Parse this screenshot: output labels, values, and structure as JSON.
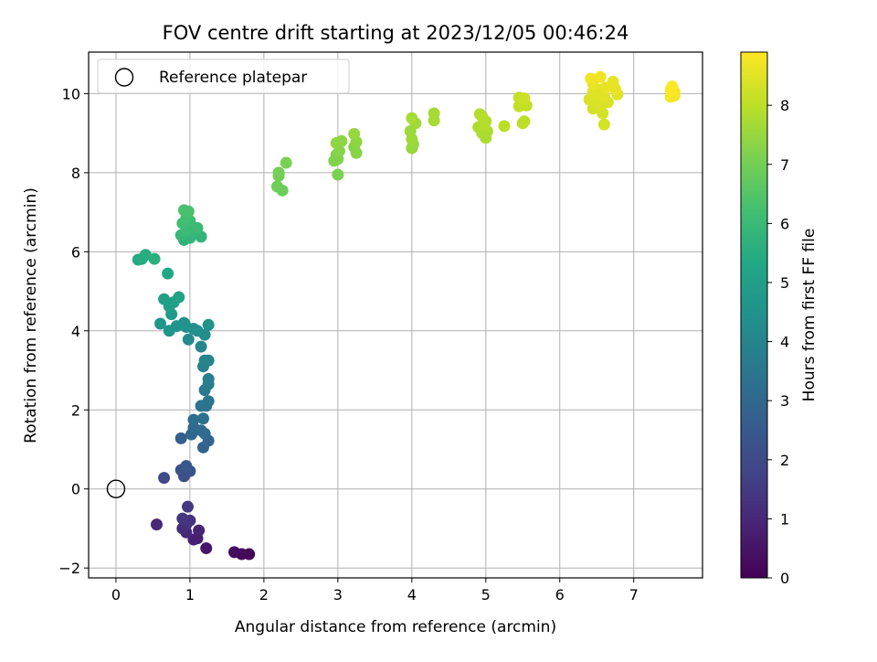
{
  "chart_data": {
    "type": "scatter",
    "title": "FOV centre drift starting at 2023/12/05 00:46:24",
    "xlabel": "Angular distance from reference (arcmin)",
    "ylabel": "Rotation from reference (arcmin)",
    "xlim": [
      -0.37,
      7.93
    ],
    "ylim": [
      -2.25,
      11.05
    ],
    "xticks": [
      0,
      1,
      2,
      3,
      4,
      5,
      6,
      7
    ],
    "yticks": [
      -2,
      0,
      2,
      4,
      6,
      8,
      10
    ],
    "grid": true,
    "legend": {
      "placement": "top-left",
      "entries": [
        "Reference platepar"
      ]
    },
    "reference_point": {
      "x": 0,
      "y": 0,
      "label": "Reference platepar"
    },
    "colorbar": {
      "label": "Hours from first FF file",
      "colormap": "viridis",
      "range": [
        0,
        8.9
      ],
      "ticks": [
        0,
        1,
        2,
        3,
        4,
        5,
        6,
        7,
        8
      ]
    },
    "series": [
      {
        "points": [
          {
            "x": 1.8,
            "y": -1.65,
            "c": 0.1
          },
          {
            "x": 1.7,
            "y": -1.65,
            "c": 0.2
          },
          {
            "x": 1.6,
            "y": -1.6,
            "c": 0.3
          },
          {
            "x": 1.22,
            "y": -1.5,
            "c": 0.5
          },
          {
            "x": 1.1,
            "y": -1.25,
            "c": 0.7
          },
          {
            "x": 1.05,
            "y": -1.28,
            "c": 0.8
          },
          {
            "x": 1.12,
            "y": -1.05,
            "c": 0.9
          },
          {
            "x": 0.95,
            "y": -1.1,
            "c": 1.0
          },
          {
            "x": 0.9,
            "y": -1.0,
            "c": 1.1
          },
          {
            "x": 0.95,
            "y": -0.9,
            "c": 1.2
          },
          {
            "x": 0.55,
            "y": -0.9,
            "c": 1.0
          },
          {
            "x": 1.0,
            "y": -0.8,
            "c": 1.3
          },
          {
            "x": 0.9,
            "y": -0.75,
            "c": 1.4
          },
          {
            "x": 0.97,
            "y": -0.45,
            "c": 1.5
          },
          {
            "x": 0.65,
            "y": 0.28,
            "c": 2.0
          },
          {
            "x": 0.92,
            "y": 0.32,
            "c": 2.1
          },
          {
            "x": 0.88,
            "y": 0.48,
            "c": 2.2
          },
          {
            "x": 1.0,
            "y": 0.45,
            "c": 2.3
          },
          {
            "x": 0.95,
            "y": 0.58,
            "c": 2.4
          },
          {
            "x": 0.88,
            "y": 1.28,
            "c": 2.7
          },
          {
            "x": 1.18,
            "y": 1.05,
            "c": 2.8
          },
          {
            "x": 1.25,
            "y": 1.22,
            "c": 2.9
          },
          {
            "x": 1.02,
            "y": 1.38,
            "c": 3.0
          },
          {
            "x": 1.05,
            "y": 1.55,
            "c": 3.0
          },
          {
            "x": 1.15,
            "y": 1.48,
            "c": 3.1
          },
          {
            "x": 1.2,
            "y": 1.4,
            "c": 3.1
          },
          {
            "x": 1.05,
            "y": 1.75,
            "c": 3.2
          },
          {
            "x": 1.18,
            "y": 1.78,
            "c": 3.3
          },
          {
            "x": 1.15,
            "y": 2.1,
            "c": 3.4
          },
          {
            "x": 1.22,
            "y": 2.1,
            "c": 3.5
          },
          {
            "x": 1.25,
            "y": 2.22,
            "c": 3.5
          },
          {
            "x": 1.2,
            "y": 2.5,
            "c": 3.6
          },
          {
            "x": 1.25,
            "y": 2.65,
            "c": 3.7
          },
          {
            "x": 1.25,
            "y": 2.78,
            "c": 3.8
          },
          {
            "x": 1.18,
            "y": 3.1,
            "c": 3.9
          },
          {
            "x": 1.2,
            "y": 3.25,
            "c": 4.0
          },
          {
            "x": 1.25,
            "y": 3.25,
            "c": 4.0
          },
          {
            "x": 1.15,
            "y": 3.6,
            "c": 4.1
          },
          {
            "x": 0.98,
            "y": 3.78,
            "c": 4.2
          },
          {
            "x": 1.2,
            "y": 3.9,
            "c": 4.3
          },
          {
            "x": 1.05,
            "y": 4.05,
            "c": 4.3
          },
          {
            "x": 1.1,
            "y": 4.0,
            "c": 4.4
          },
          {
            "x": 0.95,
            "y": 4.1,
            "c": 4.4
          },
          {
            "x": 0.92,
            "y": 4.2,
            "c": 4.5
          },
          {
            "x": 1.25,
            "y": 4.15,
            "c": 4.5
          },
          {
            "x": 0.82,
            "y": 4.12,
            "c": 4.6
          },
          {
            "x": 0.72,
            "y": 4.0,
            "c": 4.6
          },
          {
            "x": 0.6,
            "y": 4.18,
            "c": 4.7
          },
          {
            "x": 0.75,
            "y": 4.42,
            "c": 4.8
          },
          {
            "x": 0.72,
            "y": 4.62,
            "c": 4.9
          },
          {
            "x": 0.65,
            "y": 4.8,
            "c": 5.0
          },
          {
            "x": 0.78,
            "y": 4.72,
            "c": 5.0
          },
          {
            "x": 0.85,
            "y": 4.85,
            "c": 5.1
          },
          {
            "x": 0.7,
            "y": 5.45,
            "c": 5.3
          },
          {
            "x": 0.3,
            "y": 5.8,
            "c": 5.4
          },
          {
            "x": 0.35,
            "y": 5.82,
            "c": 5.5
          },
          {
            "x": 0.4,
            "y": 5.92,
            "c": 5.5
          },
          {
            "x": 0.52,
            "y": 5.82,
            "c": 5.6
          },
          {
            "x": 0.92,
            "y": 6.3,
            "c": 5.7
          },
          {
            "x": 1.0,
            "y": 6.35,
            "c": 5.8
          },
          {
            "x": 1.15,
            "y": 6.38,
            "c": 5.8
          },
          {
            "x": 0.88,
            "y": 6.42,
            "c": 5.9
          },
          {
            "x": 1.05,
            "y": 6.5,
            "c": 5.9
          },
          {
            "x": 0.95,
            "y": 6.55,
            "c": 6.0
          },
          {
            "x": 1.1,
            "y": 6.6,
            "c": 6.0
          },
          {
            "x": 0.9,
            "y": 6.72,
            "c": 6.1
          },
          {
            "x": 1.0,
            "y": 6.78,
            "c": 6.1
          },
          {
            "x": 0.95,
            "y": 6.85,
            "c": 6.2
          },
          {
            "x": 0.92,
            "y": 7.05,
            "c": 6.3
          },
          {
            "x": 0.98,
            "y": 7.02,
            "c": 6.3
          },
          {
            "x": 2.18,
            "y": 7.65,
            "c": 6.9
          },
          {
            "x": 2.25,
            "y": 7.55,
            "c": 6.9
          },
          {
            "x": 2.2,
            "y": 7.92,
            "c": 7.0
          },
          {
            "x": 2.2,
            "y": 8.0,
            "c": 7.0
          },
          {
            "x": 2.3,
            "y": 8.25,
            "c": 7.1
          },
          {
            "x": 3.0,
            "y": 7.95,
            "c": 7.1
          },
          {
            "x": 2.95,
            "y": 8.3,
            "c": 7.2
          },
          {
            "x": 3.0,
            "y": 8.35,
            "c": 7.2
          },
          {
            "x": 2.98,
            "y": 8.45,
            "c": 7.2
          },
          {
            "x": 3.02,
            "y": 8.55,
            "c": 7.3
          },
          {
            "x": 3.25,
            "y": 8.5,
            "c": 7.3
          },
          {
            "x": 3.22,
            "y": 8.65,
            "c": 7.3
          },
          {
            "x": 2.98,
            "y": 8.75,
            "c": 7.4
          },
          {
            "x": 3.05,
            "y": 8.8,
            "c": 7.4
          },
          {
            "x": 3.25,
            "y": 8.78,
            "c": 7.4
          },
          {
            "x": 3.22,
            "y": 8.98,
            "c": 7.5
          },
          {
            "x": 4.0,
            "y": 8.62,
            "c": 7.5
          },
          {
            "x": 4.02,
            "y": 8.72,
            "c": 7.5
          },
          {
            "x": 4.0,
            "y": 8.85,
            "c": 7.6
          },
          {
            "x": 3.98,
            "y": 9.05,
            "c": 7.6
          },
          {
            "x": 4.05,
            "y": 9.25,
            "c": 7.6
          },
          {
            "x": 4.0,
            "y": 9.38,
            "c": 7.7
          },
          {
            "x": 4.3,
            "y": 9.32,
            "c": 7.7
          },
          {
            "x": 4.3,
            "y": 9.5,
            "c": 7.7
          },
          {
            "x": 5.0,
            "y": 8.88,
            "c": 7.8
          },
          {
            "x": 4.95,
            "y": 9.0,
            "c": 7.8
          },
          {
            "x": 5.02,
            "y": 9.05,
            "c": 7.8
          },
          {
            "x": 4.9,
            "y": 9.15,
            "c": 7.8
          },
          {
            "x": 4.98,
            "y": 9.22,
            "c": 7.9
          },
          {
            "x": 5.0,
            "y": 9.3,
            "c": 7.9
          },
          {
            "x": 4.95,
            "y": 9.42,
            "c": 7.9
          },
          {
            "x": 4.92,
            "y": 9.48,
            "c": 7.9
          },
          {
            "x": 5.25,
            "y": 9.18,
            "c": 8.0
          },
          {
            "x": 5.5,
            "y": 9.25,
            "c": 8.0
          },
          {
            "x": 5.52,
            "y": 9.3,
            "c": 8.0
          },
          {
            "x": 5.45,
            "y": 9.68,
            "c": 8.1
          },
          {
            "x": 5.55,
            "y": 9.7,
            "c": 8.1
          },
          {
            "x": 5.5,
            "y": 9.78,
            "c": 8.1
          },
          {
            "x": 5.45,
            "y": 9.9,
            "c": 8.1
          },
          {
            "x": 5.52,
            "y": 9.88,
            "c": 8.2
          },
          {
            "x": 6.6,
            "y": 9.22,
            "c": 8.3
          },
          {
            "x": 6.58,
            "y": 9.5,
            "c": 8.3
          },
          {
            "x": 6.45,
            "y": 9.62,
            "c": 8.3
          },
          {
            "x": 6.55,
            "y": 9.7,
            "c": 8.4
          },
          {
            "x": 6.65,
            "y": 9.78,
            "c": 8.4
          },
          {
            "x": 6.4,
            "y": 9.85,
            "c": 8.4
          },
          {
            "x": 6.5,
            "y": 9.88,
            "c": 8.4
          },
          {
            "x": 6.6,
            "y": 9.95,
            "c": 8.5
          },
          {
            "x": 6.78,
            "y": 9.98,
            "c": 8.5
          },
          {
            "x": 6.45,
            "y": 10.05,
            "c": 8.5
          },
          {
            "x": 6.55,
            "y": 10.1,
            "c": 8.5
          },
          {
            "x": 6.62,
            "y": 10.15,
            "c": 8.6
          },
          {
            "x": 6.75,
            "y": 10.12,
            "c": 8.6
          },
          {
            "x": 6.45,
            "y": 10.25,
            "c": 8.6
          },
          {
            "x": 6.72,
            "y": 10.3,
            "c": 8.6
          },
          {
            "x": 6.42,
            "y": 10.38,
            "c": 8.7
          },
          {
            "x": 6.55,
            "y": 10.42,
            "c": 8.7
          },
          {
            "x": 7.5,
            "y": 9.92,
            "c": 8.8
          },
          {
            "x": 7.55,
            "y": 9.95,
            "c": 8.8
          },
          {
            "x": 7.55,
            "y": 10.05,
            "c": 8.8
          },
          {
            "x": 7.5,
            "y": 10.1,
            "c": 8.9
          },
          {
            "x": 7.52,
            "y": 10.18,
            "c": 8.9
          }
        ]
      }
    ]
  }
}
